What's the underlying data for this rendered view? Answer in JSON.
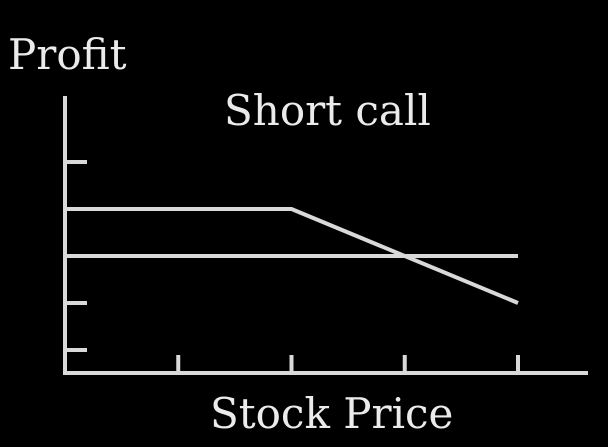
{
  "colors": {
    "background": "#000000",
    "foreground": "#d9d9d9",
    "text": "#ebebeb"
  },
  "chart_data": {
    "type": "line",
    "title": "Short call",
    "xlabel": "Stock Price",
    "ylabel": "Profit",
    "xlim": [
      0,
      4
    ],
    "ylim": [
      -2.5,
      2.5
    ],
    "x_ticks": [
      1,
      2,
      3,
      4
    ],
    "y_ticks": [
      -2,
      -1,
      1,
      2
    ],
    "tick_labels_shown": false,
    "grid": false,
    "legend": "none",
    "series": [
      {
        "x": [
          0,
          2,
          4
        ],
        "y": [
          1,
          1,
          -1
        ]
      }
    ],
    "reference_lines": [
      {
        "orientation": "horizontal",
        "y": 0,
        "x_from": 0,
        "x_to": 4
      }
    ]
  }
}
